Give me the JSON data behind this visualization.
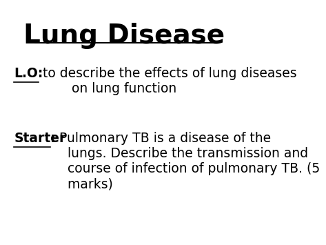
{
  "title": "Lung Disease",
  "title_fontsize": 28,
  "title_color": "#000000",
  "background_color": "#ffffff",
  "lo_label": "L.O:",
  "lo_text": " to describe the effects of lung diseases\n        on lung function",
  "lo_fontsize": 13.5,
  "starter_label": "Starter",
  "starter_colon": ":",
  "starter_text": " Pulmonary TB is a disease of the\n   lungs. Describe the transmission and\n   course of infection of pulmonary TB. (5\n   marks)",
  "starter_fontsize": 13.5
}
